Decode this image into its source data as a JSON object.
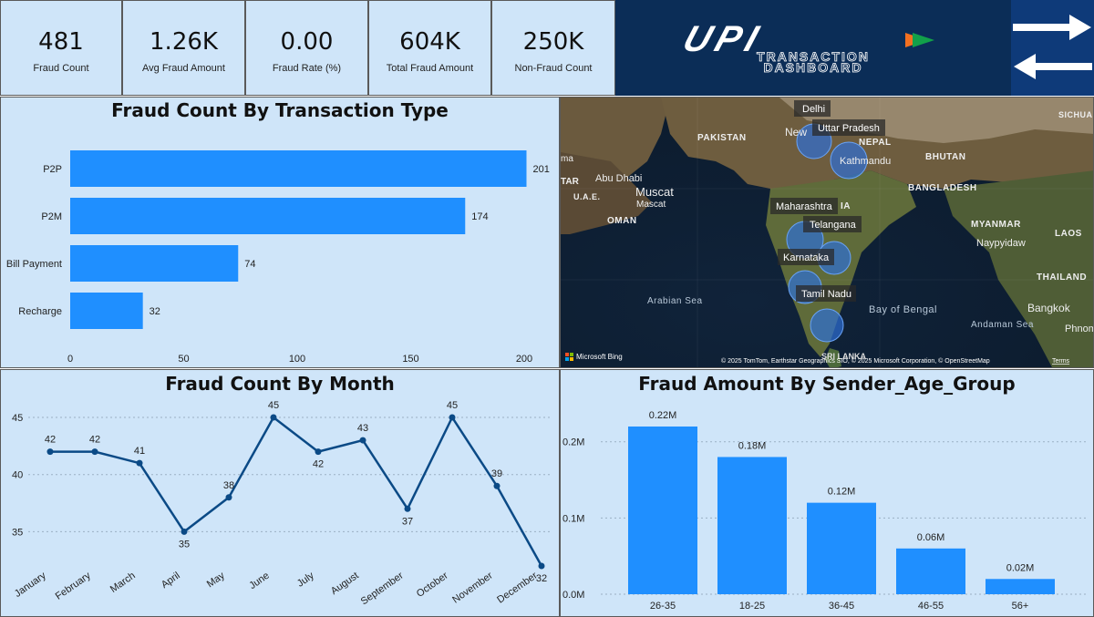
{
  "kpis": [
    {
      "value": "481",
      "label": "Fraud Count"
    },
    {
      "value": "1.26K",
      "label": "Avg Fraud Amount"
    },
    {
      "value": "0.00",
      "label": "Fraud Rate (%)"
    },
    {
      "value": "604K",
      "label": "Total Fraud Amount"
    },
    {
      "value": "250K",
      "label": "Non-Fraud Count"
    }
  ],
  "logo": {
    "brand": "UPI",
    "line1": "TRANSACTION",
    "line2": "DASHBOARD"
  },
  "colors": {
    "panel": "#cfe5f9",
    "bar": "#1f8fff",
    "line": "#0b4a86",
    "logo_bg": "#0b2d57",
    "arrow_bg": "#0e3a79"
  },
  "map": {
    "country_labels": [
      "PAKISTAN",
      "NEPAL",
      "BHUTAN",
      "BANGLADESH",
      "MYANMAR",
      "LAOS",
      "THAILAND",
      "OMAN",
      "U.A.E.",
      "SICHUAN",
      "IA"
    ],
    "city_labels": [
      "Abu Dhabi",
      "Muscat",
      "Mascat",
      "Kathmandu",
      "Naypyidaw",
      "Bangkok",
      "Phnom",
      "New",
      "ma",
      "TAR"
    ],
    "sea_labels": [
      "Arabian Sea",
      "Bay of Bengal",
      "Andaman Sea"
    ],
    "state_labels": [
      "Delhi",
      "Uttar Pradesh",
      "Maharashtra",
      "Telangana",
      "Karnataka",
      "Tamil Nadu"
    ],
    "partial_label": "SRI LANKA",
    "attribution": "© 2025 TomTom, Earthstar Geographics SIO, © 2025 Microsoft Corporation, © OpenStreetMap",
    "terms": "Terms",
    "bing": "Microsoft Bing"
  },
  "chart_data": [
    {
      "type": "bar",
      "orientation": "horizontal",
      "title": "Fraud Count By Transaction Type",
      "categories": [
        "P2P",
        "P2M",
        "Bill Payment",
        "Recharge"
      ],
      "values": [
        201,
        174,
        74,
        32
      ],
      "xlim": [
        0,
        200
      ],
      "ticks": [
        0,
        50,
        100,
        150,
        200
      ],
      "grid": false
    },
    {
      "type": "line",
      "title": "Fraud Count By Month",
      "categories": [
        "January",
        "February",
        "March",
        "April",
        "May",
        "June",
        "July",
        "August",
        "September",
        "October",
        "November",
        "December"
      ],
      "values": [
        42,
        42,
        41,
        35,
        38,
        45,
        42,
        43,
        37,
        45,
        39,
        32
      ],
      "ylim": [
        32,
        45
      ],
      "ticks": [
        35,
        40,
        45
      ],
      "grid": true
    },
    {
      "type": "bar",
      "orientation": "vertical",
      "title": "Fraud Amount By Sender_Age_Group",
      "categories": [
        "26-35",
        "18-25",
        "36-45",
        "46-55",
        "56+"
      ],
      "values": [
        0.22,
        0.18,
        0.12,
        0.06,
        0.02
      ],
      "value_labels": [
        "0.22M",
        "0.18M",
        "0.12M",
        "0.06M",
        "0.02M"
      ],
      "ylim": [
        0,
        0.22
      ],
      "ticks": [
        {
          "v": 0,
          "label": "0.0M"
        },
        {
          "v": 0.1,
          "label": "0.1M"
        },
        {
          "v": 0.2,
          "label": "0.2M"
        }
      ],
      "grid": true
    }
  ]
}
